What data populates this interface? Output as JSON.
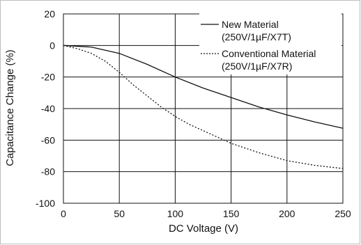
{
  "chart_data": {
    "type": "line",
    "title": "",
    "xlabel": "DC Voltage (V)",
    "ylabel": "Capacitance Change (%)",
    "xlim": [
      0,
      250
    ],
    "ylim": [
      -100,
      20
    ],
    "x_ticks": [
      "0",
      "50",
      "100",
      "150",
      "200",
      "250"
    ],
    "y_ticks": [
      "20",
      "0",
      "-20",
      "-40",
      "-60",
      "-80",
      "-100"
    ],
    "grid": true,
    "legend_position": "top-right",
    "series": [
      {
        "name": "New Material",
        "name_line2": "(250V/1µF/X7T)",
        "line_style": "solid",
        "color": "#111111",
        "x": [
          0,
          25,
          50,
          75,
          100,
          125,
          150,
          175,
          200,
          225,
          250
        ],
        "y": [
          0,
          -1,
          -5,
          -12,
          -20,
          -27,
          -33,
          -39,
          -44,
          -48.5,
          -52.5
        ]
      },
      {
        "name": "Conventional Material",
        "name_line2": "(250V/1µF/X7R)",
        "line_style": "dotted",
        "color": "#111111",
        "x": [
          0,
          12.5,
          25,
          37.5,
          50,
          62.5,
          75,
          87.5,
          100,
          112.5,
          125,
          150,
          175,
          200,
          225,
          250
        ],
        "y": [
          0,
          -2,
          -5,
          -10,
          -17,
          -25,
          -32,
          -39,
          -45,
          -50,
          -54,
          -62,
          -68,
          -73,
          -76,
          -78
        ]
      }
    ]
  }
}
